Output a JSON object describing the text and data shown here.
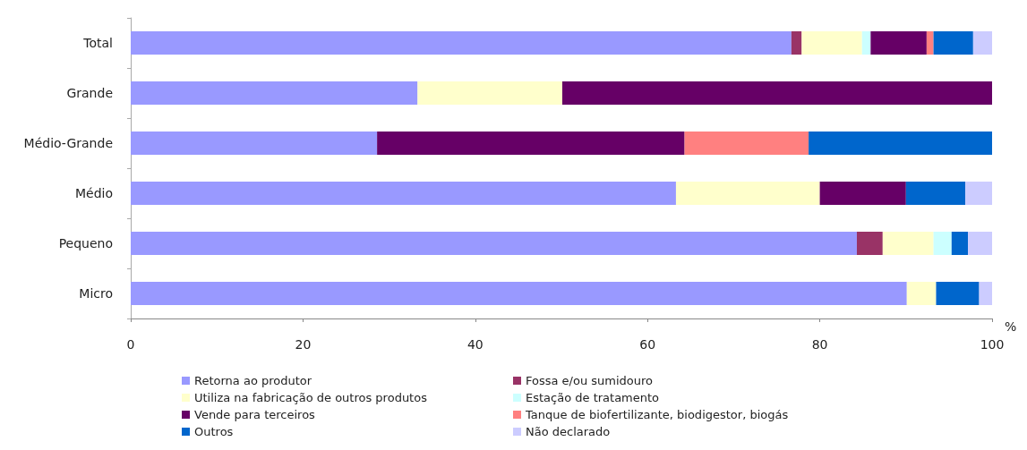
{
  "chart_data": {
    "type": "bar",
    "orientation": "horizontal",
    "stacked": true,
    "xlabel": "%",
    "categories": [
      "Total",
      "Grande",
      "Médio-Grande",
      "Médio",
      "Pequeno",
      "Micro"
    ],
    "series": [
      {
        "name": "Retorna ao produtor",
        "color": "#9999ff",
        "values": [
          76.7,
          33.3,
          28.6,
          63.3,
          84.3,
          90.1
        ]
      },
      {
        "name": "Fossa e/ou sumidouro",
        "color": "#993366",
        "values": [
          1.2,
          null,
          null,
          null,
          3.0,
          null
        ]
      },
      {
        "name": "Utiliza na fabricação de outros produtos",
        "color": "#ffffcc",
        "values": [
          7.0,
          16.8,
          null,
          16.7,
          5.9,
          3.4
        ]
      },
      {
        "name": "Estação de tratamento",
        "color": "#ccffff",
        "values": [
          1.0,
          null,
          null,
          null,
          2.1,
          null
        ]
      },
      {
        "name": "Vende para terceiros",
        "color": "#660066",
        "values": [
          6.5,
          49.9,
          35.7,
          10.0,
          null,
          null
        ]
      },
      {
        "name": "Tanque de biofertilizante, biodigestor, biogás",
        "color": "#ff8080",
        "values": [
          0.8,
          null,
          14.4,
          null,
          null,
          null
        ]
      },
      {
        "name": "Outros",
        "color": "#0066cc",
        "values": [
          4.6,
          null,
          21.3,
          6.9,
          1.9,
          5.0
        ]
      },
      {
        "name": "Não declarado",
        "color": "#ccccff",
        "values": [
          2.2,
          null,
          null,
          3.1,
          2.9,
          1.5
        ]
      }
    ],
    "xlim": [
      0,
      100
    ],
    "xticks": [
      0,
      20,
      40,
      60,
      80,
      100
    ],
    "grid": false,
    "legend": "bottom"
  }
}
